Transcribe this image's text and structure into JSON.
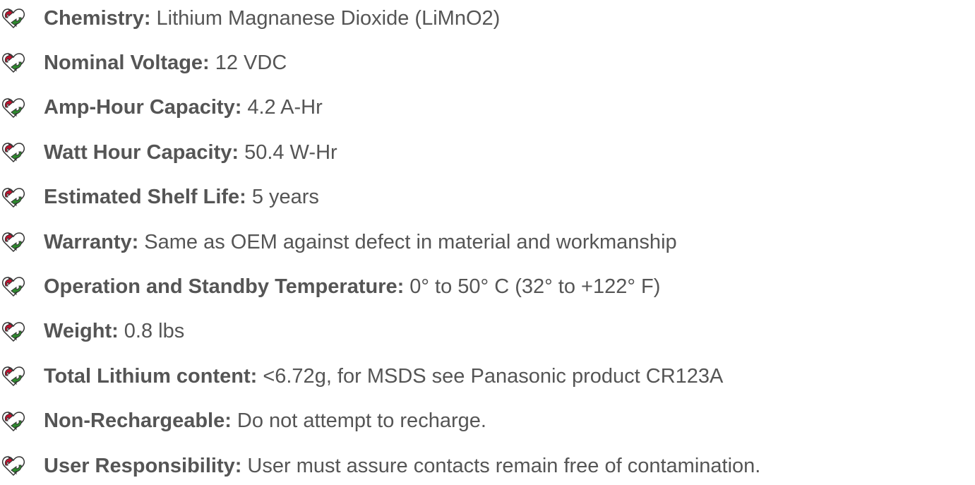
{
  "items": [
    {
      "label": "Chemistry:",
      "value": "Lithium Magnanese Dioxide (LiMnO2)"
    },
    {
      "label": "Nominal Voltage:",
      "value": "12 VDC"
    },
    {
      "label": "Amp-Hour Capacity:",
      "value": "4.2 A-Hr"
    },
    {
      "label": "Watt Hour Capacity:",
      "value": "50.4 W-Hr"
    },
    {
      "label": "Estimated Shelf Life:",
      "value": "5 years"
    },
    {
      "label": "Warranty:",
      "value": "Same as OEM against defect in material and workmanship"
    },
    {
      "label": "Operation and Standby Temperature:",
      "value": "0° to 50° C (32° to +122° F)"
    },
    {
      "label": "Weight:",
      "value": "0.8 lbs"
    },
    {
      "label": "Total Lithium content:",
      "value": "<6.72g, for MSDS see Panasonic product CR123A"
    },
    {
      "label": "Non-Rechargeable:",
      "value": "Do not attempt to recharge."
    },
    {
      "label": "User Responsibility:",
      "value": "User must assure contacts remain free of contamination."
    }
  ]
}
